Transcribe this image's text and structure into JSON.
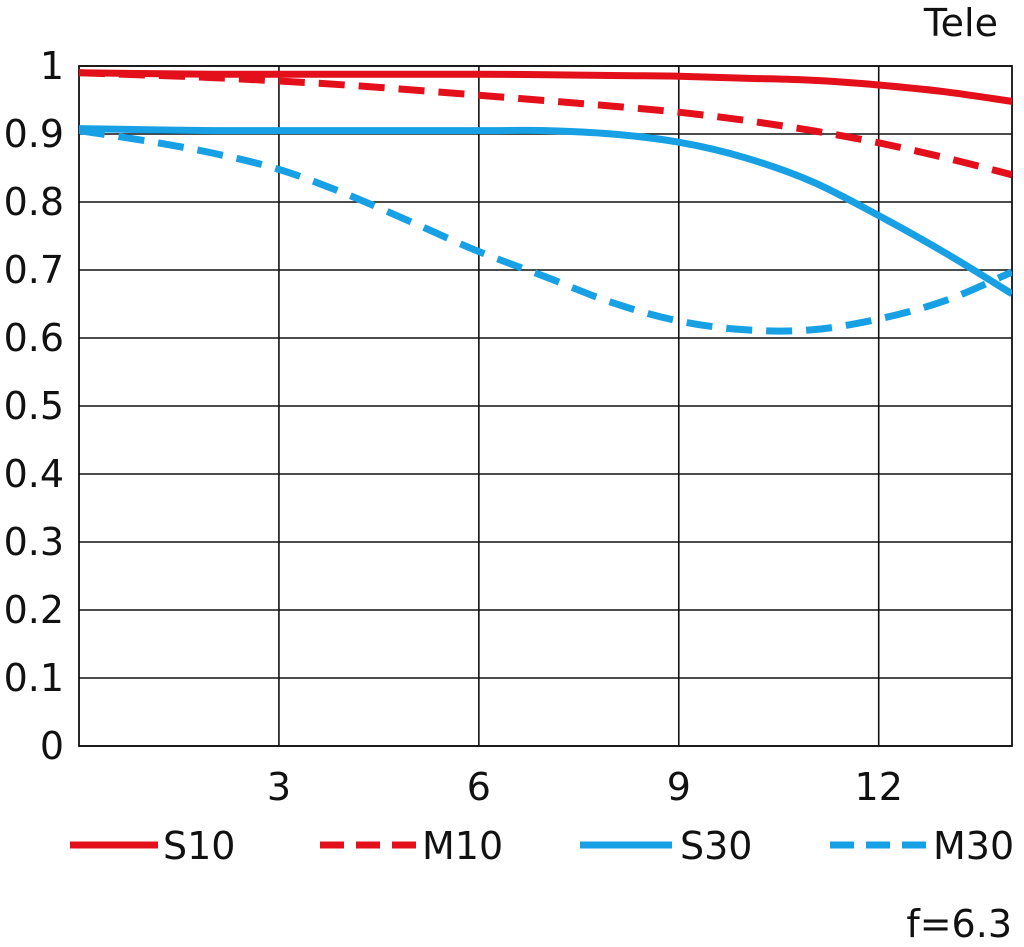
{
  "chart_data": {
    "type": "line",
    "title": "Tele",
    "footnote": "f=6.3",
    "xlabel": "",
    "ylabel": "",
    "xlim": [
      0,
      14
    ],
    "ylim": [
      0,
      1
    ],
    "x_ticks": [
      3,
      6,
      9,
      12
    ],
    "y_ticks": [
      0,
      0.1,
      0.2,
      0.3,
      0.4,
      0.5,
      0.6,
      0.7,
      0.8,
      0.9,
      1
    ],
    "grid": true,
    "legend_position": "bottom",
    "series": [
      {
        "name": "S10",
        "color": "#e3101b",
        "dash": "solid",
        "x": [
          0,
          2,
          4,
          6,
          8,
          9,
          10,
          11,
          12,
          13,
          14
        ],
        "y": [
          0.99,
          0.988,
          0.988,
          0.988,
          0.986,
          0.985,
          0.982,
          0.979,
          0.972,
          0.962,
          0.948
        ]
      },
      {
        "name": "M10",
        "color": "#e3101b",
        "dash": "dashed",
        "x": [
          0,
          2,
          4,
          6,
          8,
          9,
          10,
          11,
          12,
          13,
          14
        ],
        "y": [
          0.99,
          0.983,
          0.972,
          0.957,
          0.941,
          0.932,
          0.92,
          0.905,
          0.887,
          0.865,
          0.84
        ]
      },
      {
        "name": "S30",
        "color": "#17a1e4",
        "dash": "solid",
        "x": [
          0,
          2,
          4,
          6,
          7,
          8,
          9,
          10,
          11,
          12,
          13,
          14
        ],
        "y": [
          0.908,
          0.905,
          0.905,
          0.905,
          0.905,
          0.9,
          0.888,
          0.865,
          0.83,
          0.78,
          0.725,
          0.665
        ]
      },
      {
        "name": "M30",
        "color": "#17a1e4",
        "dash": "dashed",
        "x": [
          0,
          1,
          2,
          3,
          4,
          5,
          6,
          7,
          8,
          9,
          10,
          11,
          12,
          13,
          14
        ],
        "y": [
          0.905,
          0.89,
          0.872,
          0.848,
          0.812,
          0.77,
          0.727,
          0.69,
          0.652,
          0.625,
          0.612,
          0.612,
          0.628,
          0.655,
          0.697
        ]
      }
    ]
  }
}
